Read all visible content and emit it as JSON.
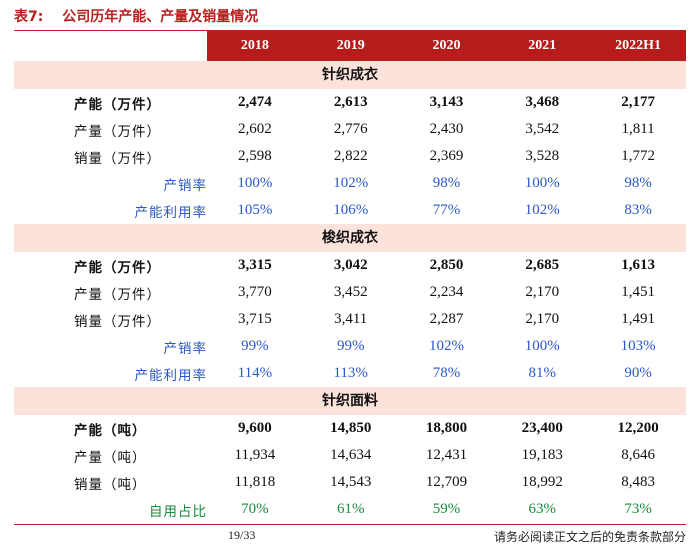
{
  "caption": {
    "label": "表7:",
    "title": "公司历年产能、产量及销量情况"
  },
  "years": [
    "2018",
    "2019",
    "2020",
    "2021",
    "2022H1"
  ],
  "sections": [
    {
      "title": "针织成衣",
      "rows": [
        {
          "label": "产能（万件）",
          "style": "bold",
          "values": [
            "2,474",
            "2,613",
            "3,143",
            "3,468",
            "2,177"
          ]
        },
        {
          "label": "产量（万件）",
          "style": "normal",
          "values": [
            "2,602",
            "2,776",
            "2,430",
            "3,542",
            "1,811"
          ]
        },
        {
          "label": "销量（万件）",
          "style": "normal",
          "values": [
            "2,598",
            "2,822",
            "2,369",
            "3,528",
            "1,772"
          ]
        },
        {
          "label": "产销率",
          "style": "pct",
          "values": [
            "100%",
            "102%",
            "98%",
            "100%",
            "98%"
          ]
        },
        {
          "label": "产能利用率",
          "style": "pct",
          "values": [
            "105%",
            "106%",
            "77%",
            "102%",
            "83%"
          ]
        }
      ]
    },
    {
      "title": "梭织成衣",
      "rows": [
        {
          "label": "产能（万件）",
          "style": "bold",
          "values": [
            "3,315",
            "3,042",
            "2,850",
            "2,685",
            "1,613"
          ]
        },
        {
          "label": "产量（万件）",
          "style": "normal",
          "values": [
            "3,770",
            "3,452",
            "2,234",
            "2,170",
            "1,451"
          ]
        },
        {
          "label": "销量（万件）",
          "style": "normal",
          "values": [
            "3,715",
            "3,411",
            "2,287",
            "2,170",
            "1,491"
          ]
        },
        {
          "label": "产销率",
          "style": "pct",
          "values": [
            "99%",
            "99%",
            "102%",
            "100%",
            "103%"
          ]
        },
        {
          "label": "产能利用率",
          "style": "pct",
          "values": [
            "114%",
            "113%",
            "78%",
            "81%",
            "90%"
          ]
        }
      ]
    },
    {
      "title": "针织面料",
      "rows": [
        {
          "label": "产能（吨）",
          "style": "bold",
          "values": [
            "9,600",
            "14,850",
            "18,800",
            "23,400",
            "12,200"
          ]
        },
        {
          "label": "产量（吨）",
          "style": "normal",
          "values": [
            "11,934",
            "14,634",
            "12,431",
            "19,183",
            "8,646"
          ]
        },
        {
          "label": "销量（吨）",
          "style": "normal",
          "values": [
            "11,818",
            "14,543",
            "12,709",
            "18,992",
            "8,483"
          ]
        },
        {
          "label": "自用占比",
          "style": "green",
          "values": [
            "70%",
            "61%",
            "59%",
            "63%",
            "73%"
          ]
        }
      ]
    }
  ],
  "footer": {
    "page": "19/33",
    "note": "请务必阅读正文之后的免责条款部分"
  },
  "colors": {
    "accent": "#b7201e",
    "header_bg": "#b71c1c",
    "section_bg": "#fbe3dc",
    "pct_text": "#2b57c8",
    "green_text": "#1a8a3c"
  }
}
